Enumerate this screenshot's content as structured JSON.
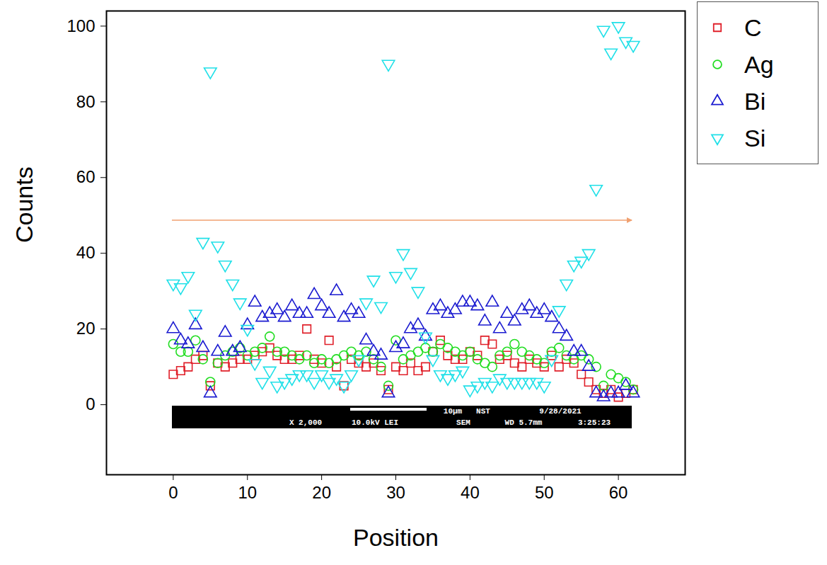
{
  "chart_data": {
    "type": "scatter",
    "x_label": "Position",
    "y_label": "Counts",
    "xlim": [
      -9,
      69
    ],
    "ylim": [
      -18.5,
      104
    ],
    "xticks": [
      0,
      10,
      20,
      30,
      40,
      50,
      60
    ],
    "yticks": [
      0,
      20,
      40,
      60,
      80,
      100
    ],
    "grid": false,
    "legend": "right",
    "annotations": [
      "10μm",
      "NST",
      "9/28/2021",
      "X 2,000",
      "10.0kV LEI",
      "SEM",
      "WD 5.7mm",
      "3:25:23"
    ],
    "x": [
      0,
      1,
      2,
      3,
      4,
      5,
      6,
      7,
      8,
      9,
      10,
      11,
      12,
      13,
      14,
      15,
      16,
      17,
      18,
      19,
      20,
      21,
      22,
      23,
      24,
      25,
      26,
      27,
      28,
      29,
      30,
      31,
      32,
      33,
      34,
      35,
      36,
      37,
      38,
      39,
      40,
      41,
      42,
      43,
      44,
      45,
      46,
      47,
      48,
      49,
      50,
      51,
      52,
      53,
      54,
      55,
      56,
      57,
      58,
      59,
      60,
      61,
      62
    ],
    "series": [
      {
        "name": "C",
        "color": "#e0202a",
        "marker": "square",
        "values": [
          8,
          9,
          10,
          12,
          13,
          5,
          11,
          10,
          11,
          12,
          12,
          13,
          14,
          15,
          13,
          12,
          12,
          13,
          20,
          12,
          11,
          17,
          10,
          5,
          12,
          11,
          10,
          11,
          9,
          4,
          10,
          9,
          11,
          9,
          10,
          14,
          17,
          13,
          12,
          12,
          14,
          13,
          17,
          16,
          12,
          13,
          11,
          10,
          12,
          11,
          10,
          13,
          10,
          12,
          11,
          8,
          6,
          4,
          3,
          4,
          2,
          3,
          4
        ]
      },
      {
        "name": "Ag",
        "color": "#22dd22",
        "marker": "circle",
        "values": [
          16,
          14,
          14,
          17,
          12,
          6,
          11,
          13,
          14,
          15,
          13,
          14,
          15,
          18,
          14,
          14,
          13,
          12,
          13,
          11,
          12,
          11,
          12,
          13,
          14,
          13,
          14,
          12,
          10,
          5,
          17,
          12,
          13,
          14,
          15,
          14,
          16,
          15,
          14,
          13,
          14,
          12,
          11,
          10,
          13,
          14,
          16,
          14,
          13,
          12,
          11,
          14,
          15,
          13,
          12,
          13,
          12,
          10,
          5,
          8,
          7,
          6,
          4
        ]
      },
      {
        "name": "Bi",
        "color": "#1a1ad0",
        "marker": "triangle",
        "values": [
          20,
          17,
          16,
          21,
          15,
          3,
          14,
          19,
          14,
          15,
          21,
          27,
          23,
          24,
          25,
          23,
          26,
          24,
          24,
          29,
          26,
          24,
          30,
          23,
          25,
          24,
          17,
          14,
          13,
          3,
          15,
          16,
          20,
          21,
          18,
          25,
          26,
          24,
          25,
          27,
          27,
          26,
          22,
          27,
          20,
          24,
          22,
          25,
          26,
          24,
          25,
          23,
          20,
          18,
          14,
          14,
          10,
          3,
          2,
          3,
          3,
          5,
          3
        ]
      },
      {
        "name": "Si",
        "color": "#20e0e8",
        "marker": "triangle-down",
        "values": [
          32,
          31,
          34,
          24,
          43,
          88,
          42,
          37,
          32,
          27,
          20,
          11,
          6,
          9,
          5,
          6,
          7,
          8,
          8,
          6,
          8,
          6,
          7,
          5,
          8,
          12,
          27,
          33,
          26,
          90,
          34,
          40,
          35,
          30,
          18,
          12,
          8,
          7,
          8,
          9,
          4,
          5,
          6,
          5,
          7,
          6,
          6,
          6,
          6,
          6,
          5,
          12,
          25,
          32,
          37,
          38,
          40,
          57,
          99,
          93,
          100,
          96,
          95
        ]
      }
    ]
  }
}
